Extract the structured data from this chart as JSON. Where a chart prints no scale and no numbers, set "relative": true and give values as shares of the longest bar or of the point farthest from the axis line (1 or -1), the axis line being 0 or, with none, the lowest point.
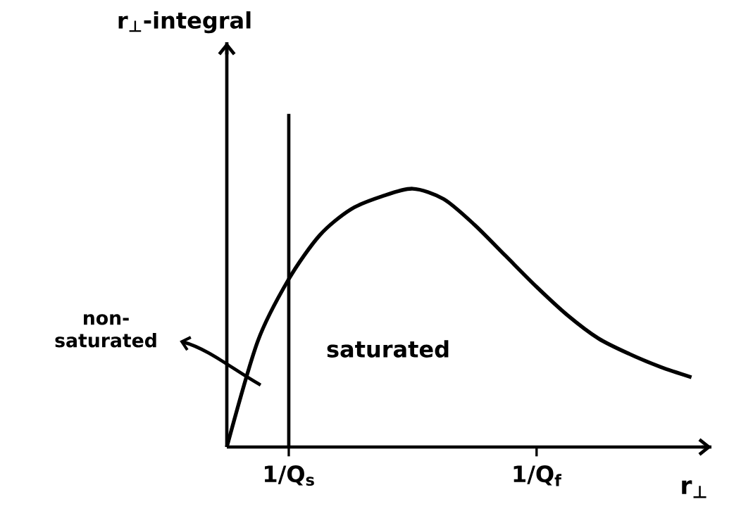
{
  "chart_data": {
    "type": "line",
    "relative": true,
    "xlabel": "r$_{⊥}$",
    "categories": [
      null,
      null,
      "1/Q$_{s}$",
      null,
      null,
      null,
      null,
      null,
      null,
      null,
      "1/Q$_{f}$",
      null,
      null,
      null,
      null,
      null
    ],
    "series": [
      {
        "color": "#000000",
        "values": [
          0,
          0.41,
          0.65,
          0.82,
          0.92,
          0.97,
          1.0,
          0.96,
          0.86,
          0.74,
          0.62,
          0.51,
          0.42,
          0.36,
          0.31,
          0.27
        ]
      }
    ],
    "ref_lines": [
      {
        "axis": "x",
        "value": "1/Q$_{s}$",
        "color": "#000000"
      }
    ],
    "annotations": [
      "non-saturated",
      "saturated",
      "r$_{⊥}$-integral"
    ],
    "marker": "none",
    "line_style": "solid"
  }
}
